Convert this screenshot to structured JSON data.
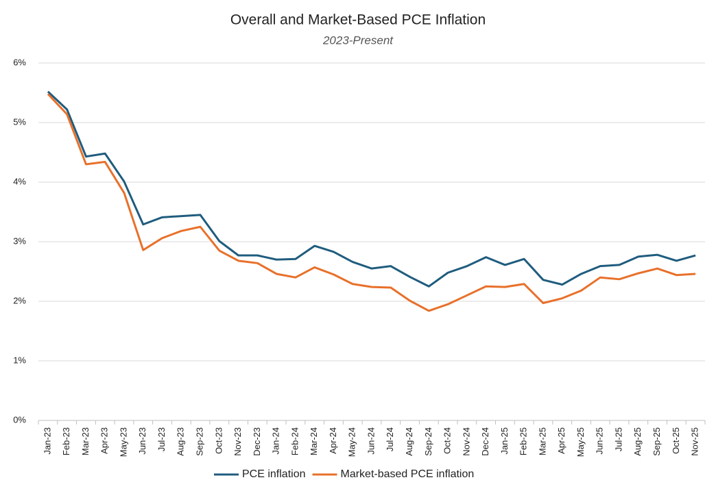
{
  "chart_data": {
    "type": "line",
    "title": "Overall and Market-Based PCE Inflation",
    "subtitle": "2023-Present",
    "categories": [
      "Jan-23",
      "Feb-23",
      "Mar-23",
      "Apr-23",
      "May-23",
      "Jun-23",
      "Jul-23",
      "Aug-23",
      "Sep-23",
      "Oct-23",
      "Nov-23",
      "Dec-23",
      "Jan-24",
      "Feb-24",
      "Mar-24",
      "Apr-24",
      "May-24",
      "Jun-24",
      "Jul-24",
      "Aug-24",
      "Sep-24",
      "Oct-24",
      "Nov-24",
      "Dec-24",
      "Jan-25",
      "Feb-25",
      "Mar-25",
      "Apr-25",
      "May-25",
      "Jun-25",
      "Jul-25",
      "Aug-25",
      "Sep-25",
      "Oct-25",
      "Nov-25"
    ],
    "series": [
      {
        "name": "PCE inflation",
        "color": "#1f5c7e",
        "values": [
          5.52,
          5.22,
          4.43,
          4.48,
          4.01,
          3.29,
          3.41,
          3.43,
          3.45,
          3.01,
          2.77,
          2.77,
          2.7,
          2.71,
          2.93,
          2.83,
          2.66,
          2.55,
          2.59,
          2.41,
          2.25,
          2.48,
          2.59,
          2.74,
          2.61,
          2.71,
          2.36,
          2.28,
          2.46,
          2.59,
          2.61,
          2.75,
          2.78,
          2.68,
          2.77
        ]
      },
      {
        "name": "Market-based PCE inflation",
        "color": "#e8702a",
        "values": [
          5.48,
          5.14,
          4.3,
          4.34,
          3.82,
          2.86,
          3.06,
          3.18,
          3.25,
          2.85,
          2.68,
          2.64,
          2.46,
          2.4,
          2.57,
          2.45,
          2.29,
          2.24,
          2.23,
          2.01,
          1.84,
          1.95,
          2.1,
          2.25,
          2.24,
          2.29,
          1.97,
          2.05,
          2.18,
          2.4,
          2.37,
          2.47,
          2.55,
          2.44,
          2.46
        ]
      }
    ],
    "ylim": [
      0,
      6
    ],
    "yticks": [
      {
        "value": 0,
        "label": "0%"
      },
      {
        "value": 1,
        "label": "1%"
      },
      {
        "value": 2,
        "label": "2%"
      },
      {
        "value": 3,
        "label": "3%"
      },
      {
        "value": 4,
        "label": "4%"
      },
      {
        "value": 5,
        "label": "5%"
      },
      {
        "value": 6,
        "label": "6%"
      }
    ],
    "grid": true,
    "legend": "bottom"
  }
}
